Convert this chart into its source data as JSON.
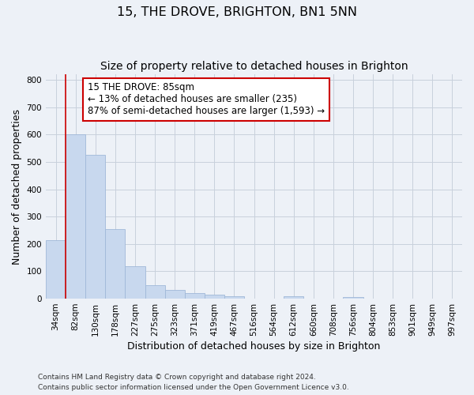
{
  "title_line1": "15, THE DROVE, BRIGHTON, BN1 5NN",
  "title_line2": "Size of property relative to detached houses in Brighton",
  "xlabel": "Distribution of detached houses by size in Brighton",
  "ylabel": "Number of detached properties",
  "categories": [
    "34sqm",
    "82sqm",
    "130sqm",
    "178sqm",
    "227sqm",
    "275sqm",
    "323sqm",
    "371sqm",
    "419sqm",
    "467sqm",
    "516sqm",
    "564sqm",
    "612sqm",
    "660sqm",
    "708sqm",
    "756sqm",
    "804sqm",
    "853sqm",
    "901sqm",
    "949sqm",
    "997sqm"
  ],
  "values": [
    215,
    600,
    525,
    255,
    118,
    50,
    33,
    20,
    15,
    8,
    0,
    0,
    10,
    0,
    0,
    5,
    0,
    0,
    0,
    0,
    0
  ],
  "bar_color": "#c8d8ee",
  "bar_edge_color": "#a0b8d8",
  "red_line_x": 1,
  "red_line_color": "#cc0000",
  "annotation_text": "15 THE DROVE: 85sqm\n← 13% of detached houses are smaller (235)\n87% of semi-detached houses are larger (1,593) →",
  "annotation_box_color": "#ffffff",
  "annotation_border_color": "#cc0000",
  "ylim": [
    0,
    820
  ],
  "yticks": [
    0,
    100,
    200,
    300,
    400,
    500,
    600,
    700,
    800
  ],
  "grid_color": "#c8d0dc",
  "bg_color": "#edf1f7",
  "footer_line1": "Contains HM Land Registry data © Crown copyright and database right 2024.",
  "footer_line2": "Contains public sector information licensed under the Open Government Licence v3.0.",
  "title_fontsize": 11.5,
  "subtitle_fontsize": 10,
  "axis_label_fontsize": 9,
  "tick_fontsize": 7.5,
  "annotation_fontsize": 8.5,
  "footer_fontsize": 6.5
}
